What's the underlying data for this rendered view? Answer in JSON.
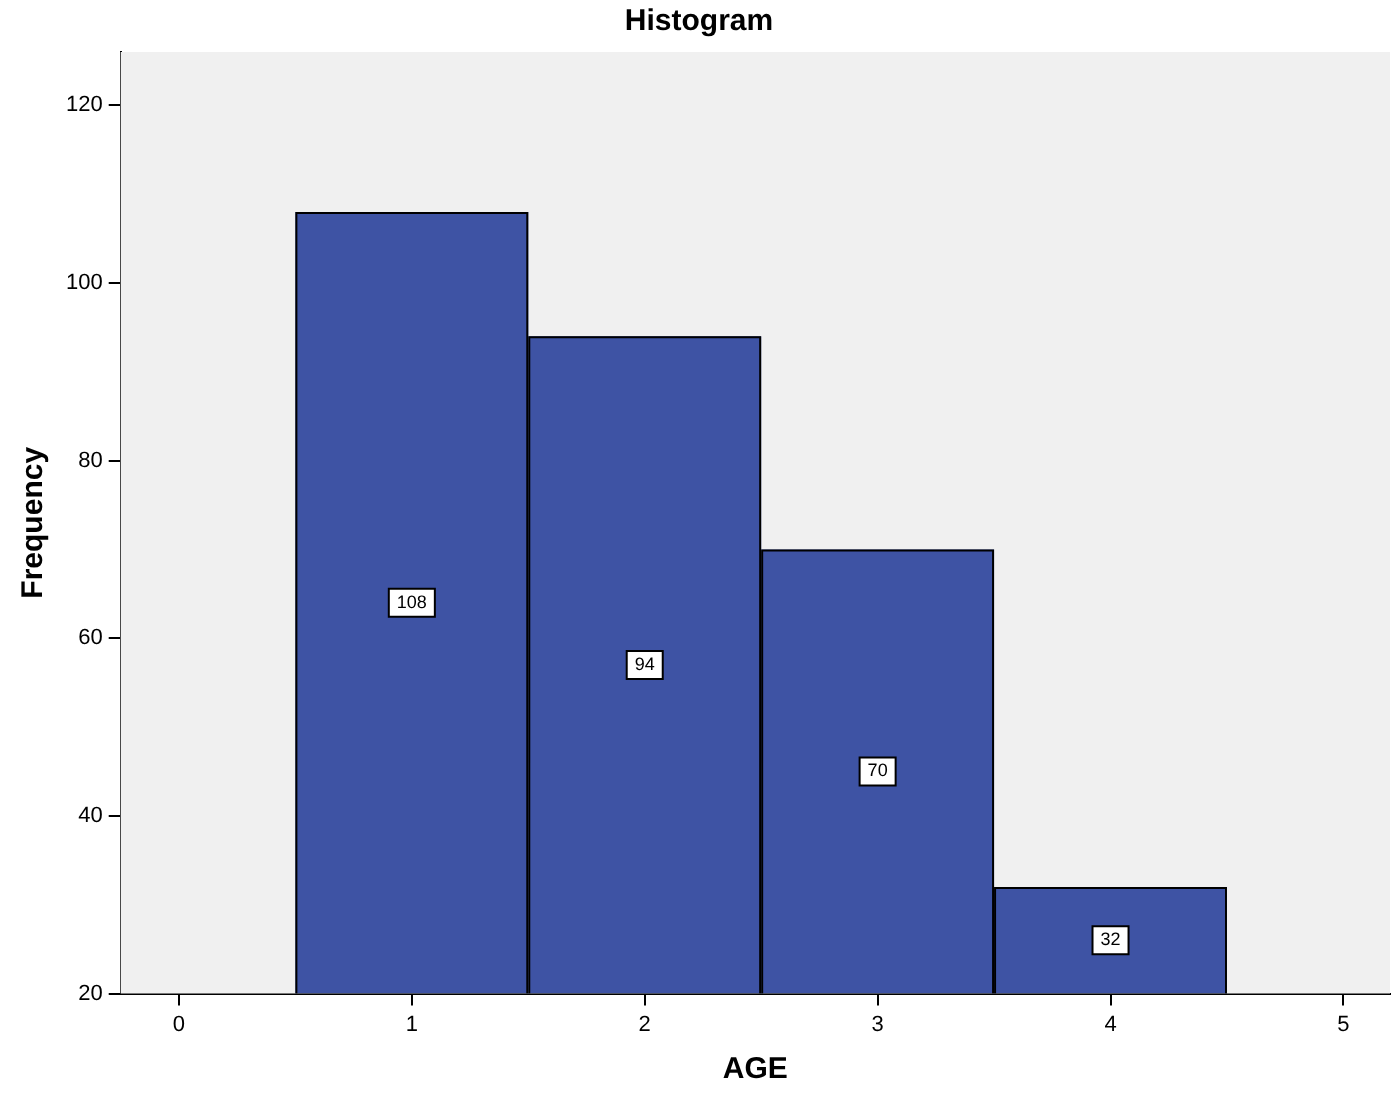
{
  "chart_data": {
    "type": "histogram",
    "title": "Histogram",
    "xlabel": "AGE",
    "ylabel": "Frequency",
    "bins": [
      0.5,
      1.5,
      2.5,
      3.5,
      4.5
    ],
    "values": [
      108,
      94,
      70,
      32
    ],
    "color": "#3e53a4",
    "xlim": [
      -0.25,
      5.2
    ],
    "xticks": [
      0,
      1,
      2,
      3,
      4,
      5
    ],
    "ylim": [
      20,
      126
    ],
    "yticks": [
      20,
      40,
      60,
      80,
      100,
      120
    ],
    "legend": false,
    "data_labels": true
  }
}
